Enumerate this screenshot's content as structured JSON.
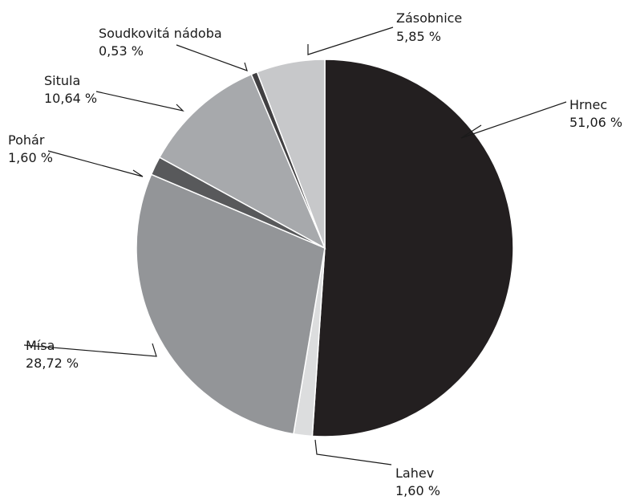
{
  "chart_data": {
    "type": "pie",
    "title": "",
    "start_angle_deg": 0,
    "direction": "clockwise",
    "slices": [
      {
        "name": "Hrnec",
        "value": 51.06,
        "value_label": "51,06 %",
        "color": "#231f20"
      },
      {
        "name": "Lahev",
        "value": 1.6,
        "value_label": "1,60 %",
        "color": "#dcddde"
      },
      {
        "name": "Mísa",
        "value": 28.72,
        "value_label": "28,72 %",
        "color": "#939598"
      },
      {
        "name": "Pohár",
        "value": 1.6,
        "value_label": "1,60 %",
        "color": "#58595b"
      },
      {
        "name": "Situla",
        "value": 10.64,
        "value_label": "10,64 %",
        "color": "#a7a9ac"
      },
      {
        "name": "Soudkovitá nádoba",
        "value": 0.53,
        "value_label": "0,53 %",
        "color": "#414042"
      },
      {
        "name": "Zásobnice",
        "value": 5.85,
        "value_label": "5,85 %",
        "color": "#c7c8ca"
      }
    ]
  }
}
